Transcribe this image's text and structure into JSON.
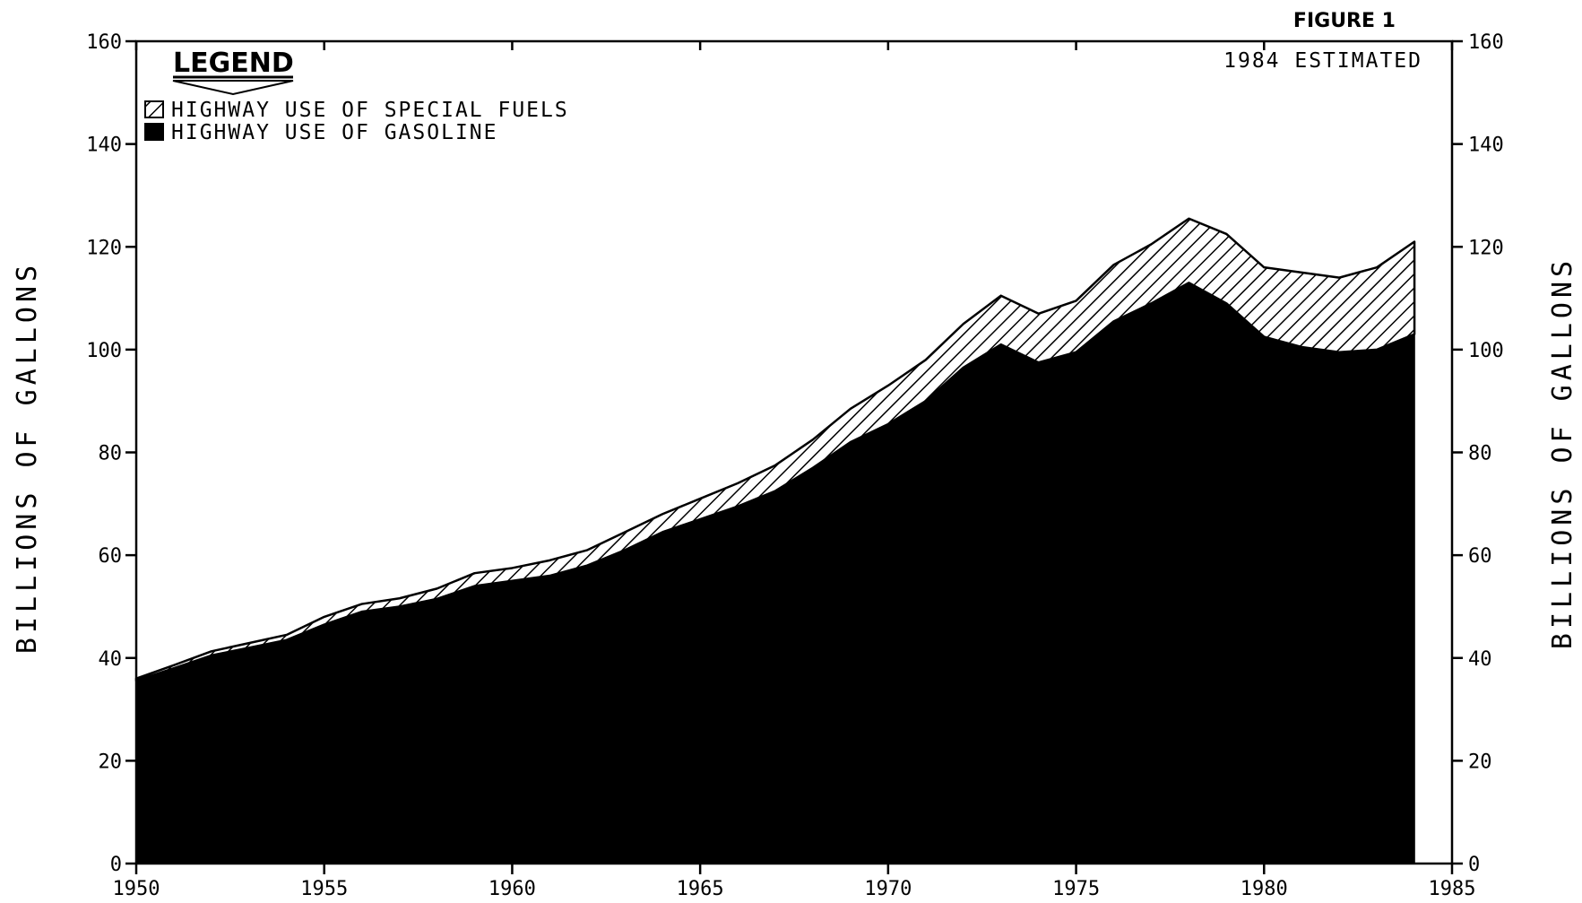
{
  "chart_data": {
    "type": "area",
    "figure_label": "FIGURE 1",
    "note": "1984 ESTIMATED",
    "ylabel": "BILLIONS OF GALLONS",
    "ylabel_right": "BILLIONS OF GALLONS",
    "xlim": [
      1950,
      1985
    ],
    "ylim": [
      0,
      160
    ],
    "x_ticks": [
      1950,
      1955,
      1960,
      1965,
      1970,
      1975,
      1980,
      1985
    ],
    "x_tick_labels": [
      "1950",
      "1955",
      "1960",
      "1965",
      "1970",
      "1975",
      "1980",
      "1985"
    ],
    "y_ticks": [
      0,
      20,
      40,
      60,
      80,
      100,
      120,
      140,
      160
    ],
    "y_tick_labels": [
      "0",
      "20",
      "40",
      "60",
      "80",
      "100",
      "120",
      "140",
      "160"
    ],
    "grid": false,
    "stacked": true,
    "legend": {
      "title": "LEGEND",
      "position": "top-left",
      "entries": [
        {
          "label": "HIGHWAY USE OF SPECIAL FUELS",
          "pattern": "hatched"
        },
        {
          "label": "HIGHWAY USE OF GASOLINE",
          "pattern": "solid"
        }
      ]
    },
    "x": [
      1950,
      1951,
      1952,
      1953,
      1954,
      1955,
      1956,
      1957,
      1958,
      1959,
      1960,
      1961,
      1962,
      1963,
      1964,
      1965,
      1966,
      1967,
      1968,
      1969,
      1970,
      1971,
      1972,
      1973,
      1974,
      1975,
      1976,
      1977,
      1978,
      1979,
      1980,
      1981,
      1982,
      1983,
      1984
    ],
    "series": [
      {
        "name": "HIGHWAY USE OF GASOLINE",
        "pattern": "solid",
        "values": [
          35.6,
          38.0,
          40.5,
          42.0,
          43.5,
          46.5,
          49.0,
          50.0,
          51.5,
          54.0,
          55.0,
          56.0,
          58.0,
          61.0,
          64.5,
          67.0,
          69.5,
          72.5,
          77.0,
          82.0,
          85.5,
          90.0,
          96.5,
          101.0,
          97.5,
          99.5,
          105.5,
          109.0,
          113.0,
          109.0,
          102.5,
          100.5,
          99.5,
          100.0,
          103.0
        ]
      },
      {
        "name": "HIGHWAY USE OF SPECIAL FUELS",
        "pattern": "hatched",
        "values": [
          0.4,
          0.6,
          0.8,
          0.9,
          1.0,
          1.5,
          1.5,
          1.6,
          2.0,
          2.5,
          2.5,
          3.0,
          3.0,
          3.5,
          3.5,
          4.0,
          4.5,
          5.0,
          5.5,
          6.5,
          7.5,
          8.0,
          8.5,
          9.5,
          9.5,
          10.0,
          11.0,
          11.5,
          12.5,
          13.5,
          13.5,
          14.5,
          14.5,
          16.0,
          18.0
        ]
      }
    ]
  }
}
